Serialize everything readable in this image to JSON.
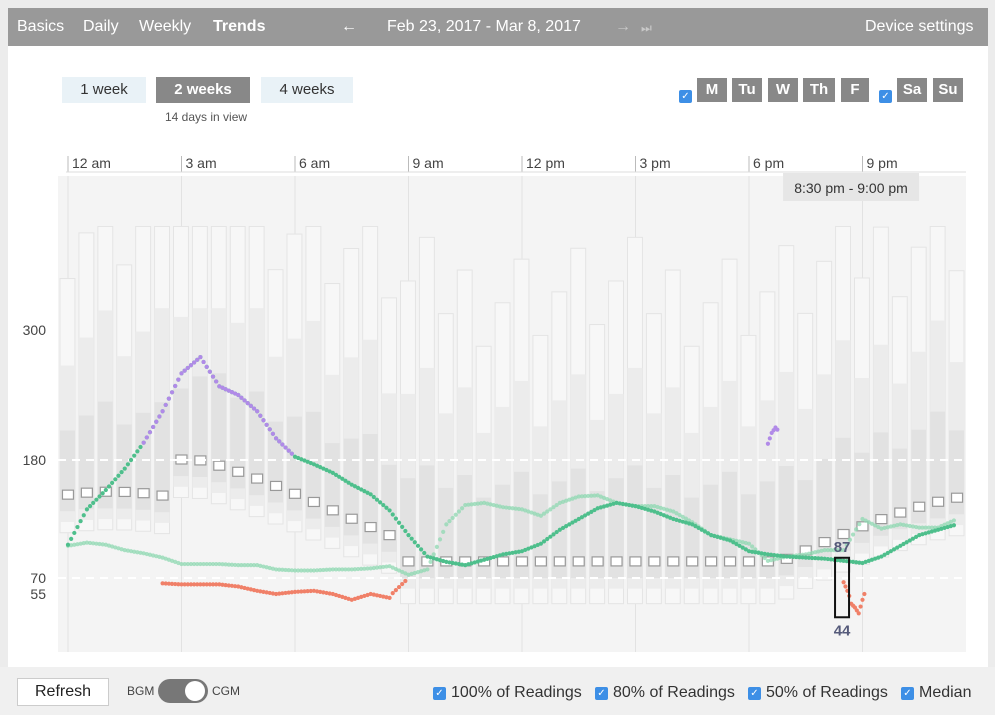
{
  "nav": {
    "tabs": [
      "Basics",
      "Daily",
      "Weekly",
      "Trends"
    ],
    "active_tab": "Trends",
    "back_arrow": "←",
    "date_range": "Feb 23, 2017 - Mar 8, 2017",
    "forward_arrow": "→",
    "most_recent_icon": "⏭",
    "device_settings": "Device settings"
  },
  "range": {
    "options": [
      "1 week",
      "2 weeks",
      "4 weeks"
    ],
    "selected": "2 weeks",
    "days_in_view": "14 days in view"
  },
  "days": {
    "weekdays_checkbox": "✓",
    "weekend_checkbox": "✓",
    "weekdays": [
      "M",
      "Tu",
      "W",
      "Th",
      "F"
    ],
    "weekend": [
      "Sa",
      "Su"
    ]
  },
  "chart_data": {
    "type": "scatter",
    "x_unit": "hour of day",
    "x_ticks": [
      "12 am",
      "3 am",
      "6 am",
      "9 am",
      "12 pm",
      "3 pm",
      "6 pm",
      "9 pm"
    ],
    "y_ticks": [
      55,
      70,
      180,
      300
    ],
    "target_lines": [
      70,
      180
    ],
    "ylim": [
      25,
      400
    ],
    "hover_label": "8:30 pm - 9:00 pm",
    "hover_max": "87",
    "hover_min": "44",
    "hover_bin_center": 20.75,
    "series": [
      {
        "color": "#8fd8b2",
        "dash": true,
        "points": [
          [
            0,
            100
          ],
          [
            0.5,
            103
          ],
          [
            1,
            101
          ],
          [
            1.5,
            96
          ],
          [
            2,
            93
          ],
          [
            2.5,
            89
          ],
          [
            3,
            83
          ],
          [
            3.5,
            83
          ],
          [
            4,
            83
          ],
          [
            4.5,
            82
          ],
          [
            5,
            82
          ],
          [
            5.5,
            78
          ],
          [
            6,
            77
          ],
          [
            6.5,
            77
          ],
          [
            7,
            78
          ],
          [
            7.5,
            78
          ],
          [
            8,
            79
          ],
          [
            8.5,
            81
          ],
          [
            9,
            73
          ],
          [
            9.5,
            78
          ],
          [
            10,
            120
          ],
          [
            10.5,
            138
          ],
          [
            11,
            140
          ],
          [
            11.5,
            136
          ],
          [
            12,
            134
          ],
          [
            12.5,
            128
          ],
          [
            13,
            140
          ],
          [
            13.5,
            146
          ],
          [
            14,
            147
          ],
          [
            14.5,
            140
          ],
          [
            15,
            137
          ],
          [
            15.5,
            137
          ],
          [
            16,
            132
          ],
          [
            16.5,
            122
          ],
          [
            17,
            110
          ],
          [
            17.5,
            106
          ],
          [
            18,
            102
          ],
          [
            18.5,
            86
          ],
          [
            19,
            90
          ],
          [
            19.5,
            92
          ],
          [
            20,
            96
          ],
          [
            20.5,
            96
          ],
          [
            21,
            125
          ],
          [
            21.5,
            116
          ],
          [
            22,
            120
          ],
          [
            22.5,
            117
          ],
          [
            23,
            117
          ],
          [
            23.5,
            125
          ]
        ]
      },
      {
        "color": "#4ebf8c",
        "points": [
          [
            0,
            101
          ],
          [
            0.5,
            134
          ],
          [
            1,
            152
          ],
          [
            1.5,
            172
          ],
          [
            2,
            196
          ],
          [
            2.5,
            225
          ],
          [
            3,
            260
          ],
          [
            3.5,
            275
          ],
          [
            4,
            248
          ],
          [
            4.5,
            240
          ],
          [
            5,
            225
          ],
          [
            5.5,
            200
          ],
          [
            6,
            183
          ],
          [
            6.5,
            176
          ],
          [
            7,
            168
          ],
          [
            7.5,
            157
          ],
          [
            8,
            148
          ],
          [
            8.5,
            133
          ],
          [
            9,
            110
          ],
          [
            9.5,
            90
          ],
          [
            10,
            85
          ],
          [
            10.5,
            82
          ],
          [
            11,
            87
          ],
          [
            11.5,
            92
          ],
          [
            12,
            95
          ],
          [
            12.5,
            102
          ],
          [
            13,
            115
          ],
          [
            13.5,
            125
          ],
          [
            14,
            135
          ],
          [
            14.5,
            140
          ],
          [
            15,
            137
          ],
          [
            15.5,
            132
          ],
          [
            16,
            125
          ],
          [
            16.5,
            120
          ],
          [
            17,
            110
          ],
          [
            17.5,
            105
          ],
          [
            18,
            95
          ],
          [
            18.5,
            92
          ],
          [
            19,
            90
          ],
          [
            19.5,
            89
          ],
          [
            20,
            88
          ],
          [
            20.5,
            86
          ],
          [
            21,
            84
          ],
          [
            21.5,
            90
          ],
          [
            22,
            100
          ],
          [
            22.5,
            110
          ],
          [
            23,
            115
          ],
          [
            23.5,
            120
          ]
        ]
      },
      {
        "color": "#b18ae8",
        "points": [
          [
            2,
            196
          ],
          [
            2.5,
            225
          ],
          [
            3,
            260
          ],
          [
            3.5,
            275
          ],
          [
            4,
            248
          ],
          [
            4.5,
            240
          ],
          [
            5,
            225
          ],
          [
            5.5,
            200
          ],
          [
            6,
            183
          ],
          [
            18.5,
            195
          ],
          [
            18.6,
            205
          ],
          [
            18.7,
            210
          ],
          [
            18.8,
            206
          ]
        ]
      },
      {
        "color": "#f08068",
        "points": [
          [
            2.5,
            65
          ],
          [
            3,
            64
          ],
          [
            3.5,
            64
          ],
          [
            4,
            64
          ],
          [
            4.5,
            62
          ],
          [
            5,
            58
          ],
          [
            5.5,
            55
          ],
          [
            6,
            57
          ],
          [
            6.5,
            58
          ],
          [
            7,
            55
          ],
          [
            7.5,
            52
          ],
          [
            8,
            55
          ],
          [
            8.5,
            53
          ],
          [
            9,
            70
          ],
          [
            20.5,
            66
          ],
          [
            20.6,
            58
          ],
          [
            20.7,
            50
          ],
          [
            20.8,
            48
          ],
          [
            20.9,
            45
          ],
          [
            21,
            52
          ],
          [
            21.1,
            58
          ]
        ]
      }
    ]
  },
  "bottom": {
    "refresh": "Refresh",
    "bgm": "BGM",
    "cgm": "CGM",
    "options": [
      "100% of Readings",
      "80% of Readings",
      "50% of Readings",
      "Median"
    ],
    "check": "✓"
  }
}
